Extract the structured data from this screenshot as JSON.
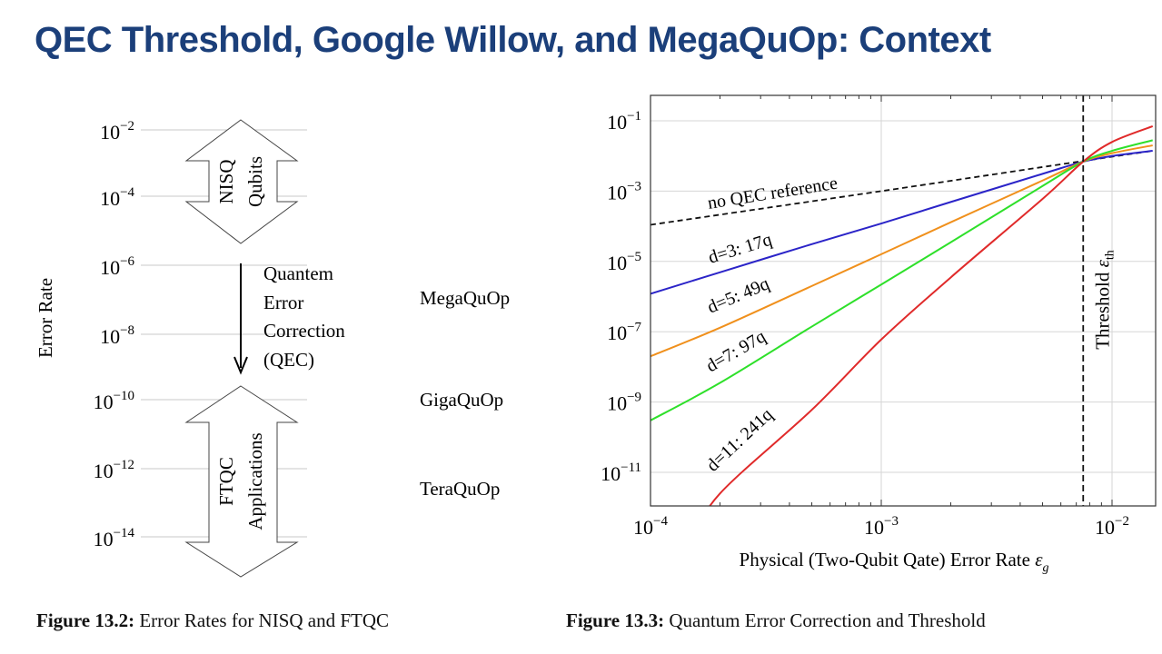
{
  "title": "QEC Threshold, Google Willow, and MegaQuOp: Context",
  "figure_left": {
    "y_label": "Error Rate",
    "y_scale": "log",
    "y_ticks": [
      {
        "base": "10",
        "exp": "−2"
      },
      {
        "base": "10",
        "exp": "−4"
      },
      {
        "base": "10",
        "exp": "−6"
      },
      {
        "base": "10",
        "exp": "−8"
      },
      {
        "base": "10",
        "exp": "−10"
      },
      {
        "base": "10",
        "exp": "−12"
      },
      {
        "base": "10",
        "exp": "−14"
      }
    ],
    "nisq_arrow": {
      "line1": "NISQ",
      "line2": "Qubits"
    },
    "ftqc_arrow": {
      "line1": "FTQC",
      "line2": "Applications"
    },
    "qec_arrow_label": [
      "Quantem",
      "Error",
      "Correction",
      "(QEC)"
    ],
    "regimes": [
      "MegaQuOp",
      "GigaQuOp",
      "TeraQuOp"
    ],
    "caption": {
      "label": "Figure 13.2:",
      "text": "Error Rates for NISQ and FTQC"
    }
  },
  "chart_data": {
    "type": "line",
    "xscale": "log",
    "yscale": "log",
    "xlim": [
      0.0001,
      0.015
    ],
    "ylim": [
      1.1e-13,
      0.5
    ],
    "grid": true,
    "xlabel": "Physical (Two-Qubit Qate) Error Rate ",
    "xlabel_symbol": "ε",
    "xlabel_sub": "g",
    "x_ticks": [
      {
        "base": "10",
        "exp": "−4",
        "value": 0.0001
      },
      {
        "base": "10",
        "exp": "−3",
        "value": 0.001
      },
      {
        "base": "10",
        "exp": "−2",
        "value": 0.01
      }
    ],
    "y_ticks": [
      {
        "base": "10",
        "exp": "−1",
        "value": 0.1
      },
      {
        "base": "10",
        "exp": "−3",
        "value": 0.001
      },
      {
        "base": "10",
        "exp": "−5",
        "value": 1e-05
      },
      {
        "base": "10",
        "exp": "−7",
        "value": 1e-07
      },
      {
        "base": "10",
        "exp": "−9",
        "value": 1e-09
      },
      {
        "base": "10",
        "exp": "−11",
        "value": 1e-11
      }
    ],
    "threshold": {
      "x": 0.0075,
      "label": "Threshold ",
      "symbol": "ε",
      "sub": "th"
    },
    "series": [
      {
        "name": "no QEC reference",
        "color": "#111111",
        "dashed": true,
        "x": [
          0.0001,
          0.001,
          0.0075,
          0.015
        ],
        "y": [
          0.00011,
          0.001,
          0.0072,
          0.014
        ]
      },
      {
        "name": "d=3: 17q",
        "color": "#2b24c8",
        "dashed": false,
        "x": [
          0.0001,
          0.0002,
          0.0005,
          0.001,
          0.002,
          0.005,
          0.0075,
          0.01,
          0.015
        ],
        "y": [
          1.2e-06,
          4.9e-06,
          3.1e-05,
          0.00012,
          0.00049,
          0.0031,
          0.0069,
          0.01,
          0.014
        ]
      },
      {
        "name": "d=5: 49q",
        "color": "#f0901c",
        "dashed": false,
        "x": [
          0.0001,
          0.0002,
          0.0005,
          0.001,
          0.002,
          0.005,
          0.0075,
          0.01,
          0.015
        ],
        "y": [
          2e-08,
          1.3e-07,
          2e-06,
          1.6e-05,
          0.00013,
          0.002,
          0.0069,
          0.012,
          0.02
        ]
      },
      {
        "name": "d=7: 97q",
        "color": "#2ee02a",
        "dashed": false,
        "x": [
          0.0001,
          0.0002,
          0.0005,
          0.001,
          0.002,
          0.005,
          0.0075,
          0.01,
          0.015
        ],
        "y": [
          3e-10,
          3.5e-09,
          1.4e-07,
          2.2e-06,
          3.5e-05,
          0.0014,
          0.0069,
          0.014,
          0.028
        ]
      },
      {
        "name": "d=11: 241q",
        "color": "#e02a2a",
        "dashed": false,
        "x": [
          0.00015,
          0.0002,
          0.0005,
          0.001,
          0.002,
          0.005,
          0.0075,
          0.01,
          0.015
        ],
        "y": [
          1.1e-13,
          2.5e-12,
          6e-10,
          6e-08,
          3.5e-06,
          0.0006,
          0.0069,
          0.025,
          0.07
        ]
      }
    ]
  },
  "caption_right": {
    "label": "Figure 13.3:",
    "text": "Quantum Error Correction and Threshold"
  }
}
